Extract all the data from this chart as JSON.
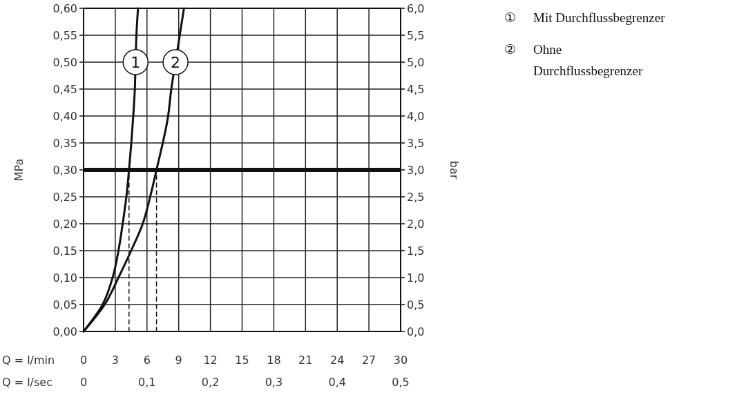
{
  "chart_data": {
    "type": "line",
    "ylabel": "MPa",
    "y2label": "bar",
    "xlabel": "Q = l/min",
    "x2label": "Q = l/sec",
    "xlim": [
      0,
      30
    ],
    "xticks": [
      0,
      3,
      6,
      9,
      12,
      15,
      18,
      21,
      24,
      27,
      30
    ],
    "x2lim": [
      0,
      0.5
    ],
    "x2ticks": [
      0,
      {
        "value": 0.1,
        "label": "0,1"
      },
      {
        "value": 0.2,
        "label": "0,2"
      },
      {
        "value": 0.3,
        "label": "0,3"
      },
      {
        "value": 0.4,
        "label": "0,4"
      },
      {
        "value": 0.5,
        "label": "0,5"
      }
    ],
    "ylim": [
      0,
      0.6
    ],
    "yticks": [
      {
        "value": 0,
        "label": "0,00"
      },
      {
        "value": 0.05,
        "label": "0,05"
      },
      {
        "value": 0.1,
        "label": "0,10"
      },
      {
        "value": 0.15,
        "label": "0,15"
      },
      {
        "value": 0.2,
        "label": "0,20"
      },
      {
        "value": 0.25,
        "label": "0,25"
      },
      {
        "value": 0.3,
        "label": "0,30"
      },
      {
        "value": 0.35,
        "label": "0,35"
      },
      {
        "value": 0.4,
        "label": "0,40"
      },
      {
        "value": 0.45,
        "label": "0,45"
      },
      {
        "value": 0.5,
        "label": "0,50"
      },
      {
        "value": 0.55,
        "label": "0,55"
      },
      {
        "value": 0.6,
        "label": "0,60"
      }
    ],
    "y2lim": [
      0,
      6
    ],
    "y2ticks": [
      {
        "value": 0,
        "label": "0,0"
      },
      {
        "value": 0.5,
        "label": "0,5"
      },
      {
        "value": 1,
        "label": "1,0"
      },
      {
        "value": 1.5,
        "label": "1,5"
      },
      {
        "value": 2,
        "label": "2,0"
      },
      {
        "value": 2.5,
        "label": "2,5"
      },
      {
        "value": 3,
        "label": "3,0"
      },
      {
        "value": 3.5,
        "label": "3,5"
      },
      {
        "value": 4,
        "label": "4,0"
      },
      {
        "value": 4.5,
        "label": "4,5"
      },
      {
        "value": 5,
        "label": "5,0"
      },
      {
        "value": 5.5,
        "label": "5,5"
      },
      {
        "value": 6,
        "label": "6,0"
      }
    ],
    "grid": true,
    "series": [
      {
        "name": "1",
        "color": "#111111",
        "x": [
          0,
          1.8,
          2.75,
          3.3,
          3.7,
          4.05,
          4.3,
          4.7,
          4.85,
          4.92,
          5.0,
          5.15
        ],
        "values": [
          0,
          0.05,
          0.1,
          0.15,
          0.2,
          0.25,
          0.3,
          0.4,
          0.45,
          0.5,
          0.55,
          0.6
        ]
      },
      {
        "name": "2",
        "color": "#111111",
        "x": [
          0,
          2.0,
          3.3,
          4.5,
          5.6,
          6.3,
          6.9,
          8.0,
          8.3,
          8.7,
          9.1,
          9.5
        ],
        "values": [
          0,
          0.05,
          0.1,
          0.15,
          0.2,
          0.25,
          0.3,
          0.4,
          0.45,
          0.5,
          0.55,
          0.6
        ]
      },
      {
        "color": "#111111",
        "line_style": "dashed",
        "x": [
          4.3,
          4.3
        ],
        "values": [
          0,
          0.3
        ]
      },
      {
        "color": "#111111",
        "line_style": "dashed",
        "x": [
          6.9,
          6.9
        ],
        "values": [
          0,
          0.3
        ]
      }
    ],
    "ref_lines": [
      {
        "axis": "y",
        "value": 0.3,
        "color": "#111111"
      }
    ],
    "annotations": [
      "① Mit Durchflussbegrenzer",
      "② Ohne Durchflussbegrenzer"
    ]
  }
}
